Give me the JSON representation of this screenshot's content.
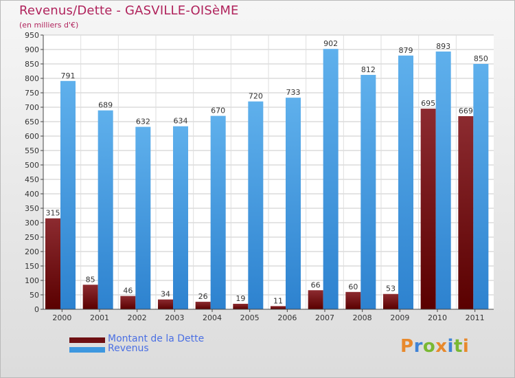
{
  "header": {
    "title": "Revenus/Dette - GASVILLE-OISèME",
    "subtitle": "(en milliers d'€)"
  },
  "legend": [
    {
      "label": "Montant de la Dette",
      "color": "#6e0f12"
    },
    {
      "label": "Revenus",
      "color": "#3d97df"
    }
  ],
  "logo": {
    "letters": [
      "P",
      "r",
      "o",
      "x",
      "i",
      "t",
      "i"
    ],
    "colors": [
      "#e8892c",
      "#3f83d6",
      "#79b833",
      "#e8892c",
      "#3f83d6",
      "#79b833",
      "#e8892c"
    ]
  },
  "chart_data": {
    "type": "bar",
    "title": "Revenus/Dette - GASVILLE-OISèME",
    "ylabel": "(en milliers d'€)",
    "categories": [
      "2000",
      "2001",
      "2002",
      "2003",
      "2004",
      "2005",
      "2006",
      "2007",
      "2008",
      "2009",
      "2010",
      "2011"
    ],
    "series": [
      {
        "name": "Montant de la Dette",
        "values": [
          315,
          85,
          46,
          34,
          26,
          19,
          11,
          66,
          60,
          53,
          695,
          669
        ],
        "color_top": "#8c2b30",
        "color_bottom": "#5a0000"
      },
      {
        "name": "Revenus",
        "values": [
          791,
          689,
          632,
          634,
          670,
          720,
          733,
          902,
          812,
          879,
          893,
          850
        ],
        "color_top": "#5fb0ec",
        "color_bottom": "#2d82cf"
      }
    ],
    "ylim": [
      0,
      950
    ],
    "yticks": [
      0,
      50,
      100,
      150,
      200,
      250,
      300,
      350,
      400,
      450,
      500,
      550,
      600,
      650,
      700,
      750,
      800,
      850,
      900,
      950
    ],
    "grid": true,
    "legend_position": "bottom-left"
  }
}
